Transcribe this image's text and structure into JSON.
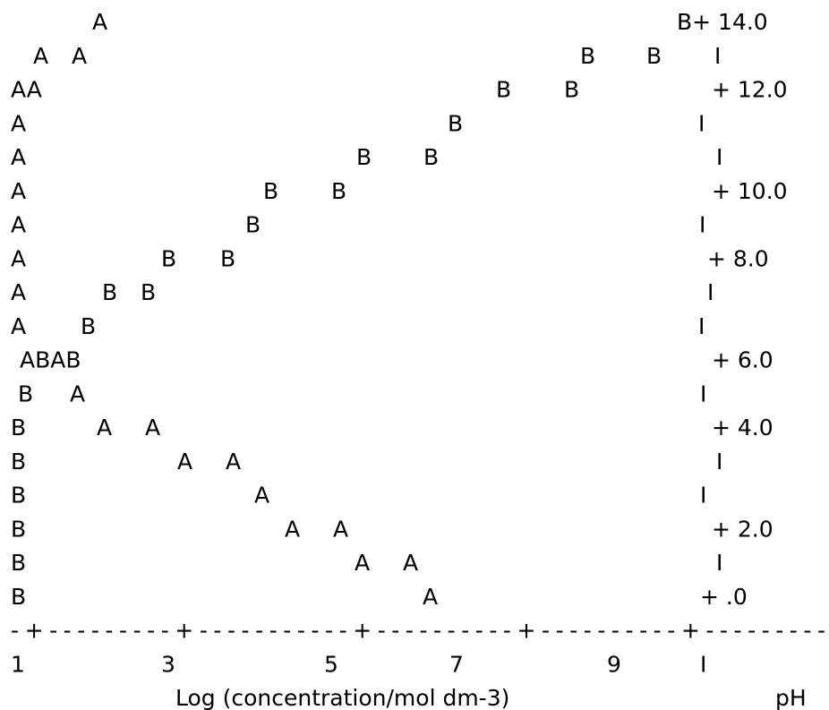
{
  "rows": [
    [
      "A",
      "B+ 14.0"
    ],
    [
      "A",
      "A",
      "B",
      "B",
      "I"
    ],
    [
      "AA",
      "B",
      "B",
      "+ 12.0"
    ],
    [
      "A",
      "B",
      "I"
    ],
    [
      "A",
      "B",
      "B",
      "I"
    ],
    [
      "A",
      "B",
      "B",
      "+ 10.0"
    ],
    [
      "A",
      "B",
      "I"
    ],
    [
      "A",
      "B",
      "B",
      "+ 8.0"
    ],
    [
      "A",
      "B",
      "B",
      "I"
    ],
    [
      "A",
      "B",
      "I"
    ],
    [
      "ABAB",
      "+ 6.0"
    ],
    [
      "B",
      "A",
      "I"
    ],
    [
      "B",
      "A",
      "A",
      "+ 4.0"
    ],
    [
      "B",
      "A",
      "A",
      "I"
    ],
    [
      "B",
      "A",
      "I"
    ],
    [
      "B",
      "A",
      "A",
      "+ 2.0"
    ],
    [
      "B",
      "A",
      "A",
      "I"
    ],
    [
      "B",
      "A",
      "+ .0"
    ],
    [
      "-+---------+-----------+----------+----------+---------"
    ],
    [
      "1",
      "3",
      "5",
      "7",
      "9",
      "I"
    ],
    [
      "Log (concentration/mol dm-3)",
      "pH"
    ]
  ]
}
